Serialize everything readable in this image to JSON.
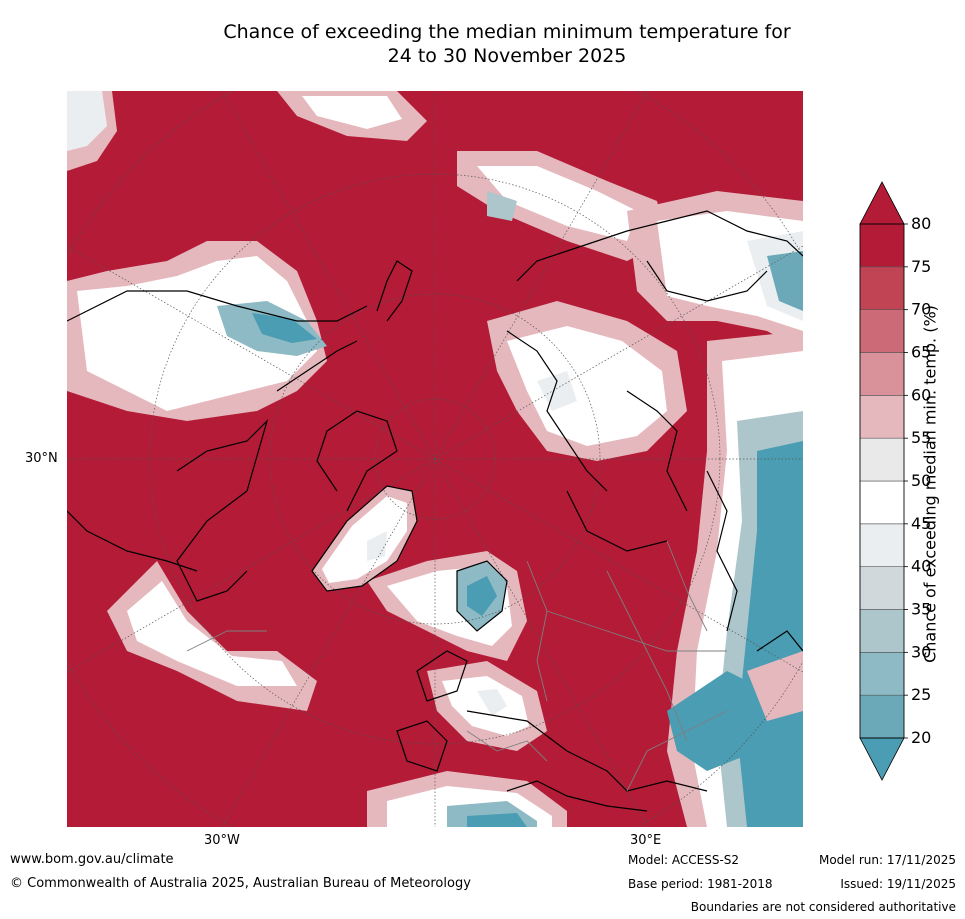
{
  "title": {
    "line1": "Chance of exceeding the median minimum temperature for",
    "line2": "24 to 30 November 2025"
  },
  "map": {
    "projection": "north-polar-stereographic",
    "latitude_labels": [
      "30°N"
    ],
    "longitude_labels": [
      "30°W",
      "30°E"
    ],
    "colors": {
      "c80": "#b31b36",
      "c75": "#c04454",
      "c70": "#cc6b77",
      "c65": "#d9919a",
      "c60": "#e5b8bd",
      "c55": "#e9e9e9",
      "c50": "#ffffff",
      "c45": "#eaeef0",
      "c40": "#d1d8dc",
      "c35": "#adc6cb",
      "c30": "#8dbac4",
      "c25": "#6ba9b8",
      "c20": "#4a9db2",
      "coast": "#000000",
      "border": "#7f7f7f"
    }
  },
  "colorbar": {
    "ticks": [
      "20",
      "25",
      "30",
      "35",
      "40",
      "45",
      "50",
      "55",
      "60",
      "65",
      "70",
      "75",
      "80"
    ],
    "label": "Chance of exceeding median min. temp. (%)"
  },
  "footer": {
    "website": "www.bom.gov.au/climate",
    "copyright": "© Commonwealth of Australia 2025, Australian Bureau of Meteorology",
    "model": "Model: ACCESS-S2",
    "base_period": "Base period: 1981-2018",
    "model_run": "Model run: 17/11/2025",
    "issued": "Issued: 19/11/2025",
    "disclaimer": "Boundaries are not considered authoritative"
  }
}
